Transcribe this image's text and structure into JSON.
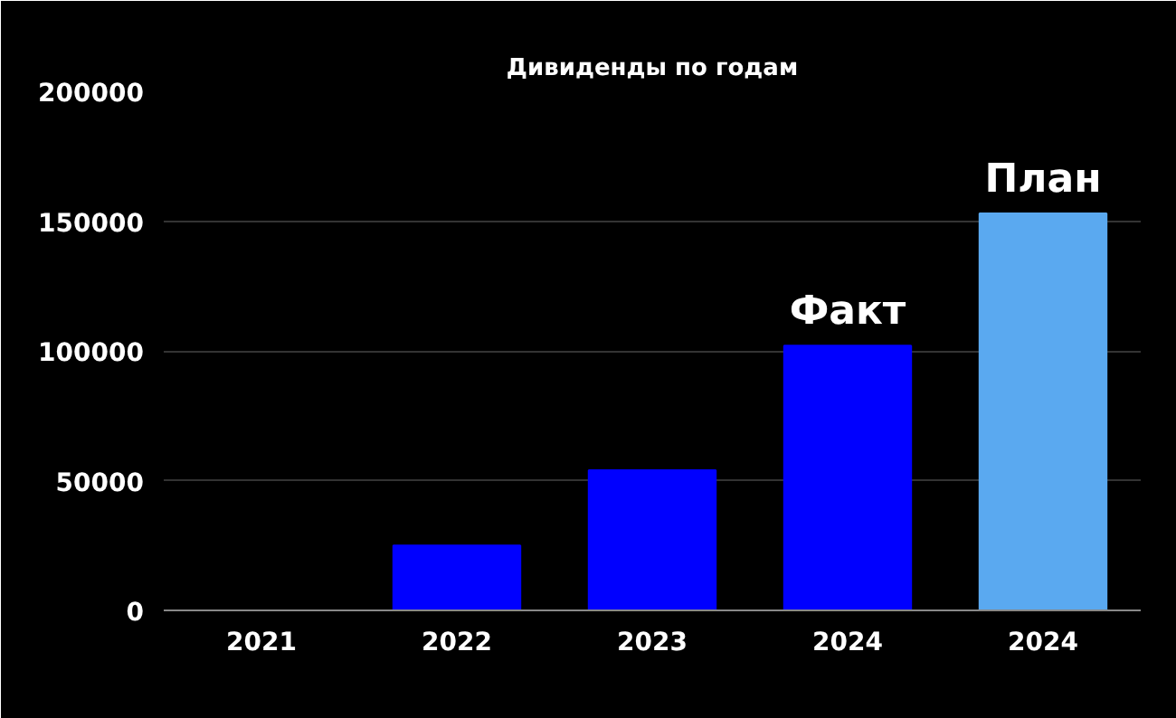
{
  "chart_data": {
    "type": "bar",
    "title": "Дивиденды по годам",
    "categories": [
      "2021",
      "2022",
      "2023",
      "2024",
      "2024"
    ],
    "values": [
      0,
      25000,
      54000,
      102000,
      153000
    ],
    "colors": [
      "#0000ff",
      "#0000ff",
      "#0000ff",
      "#0000ff",
      "#5aa9f0"
    ],
    "ylim": [
      0,
      200000
    ],
    "yticks": [
      0,
      50000,
      100000,
      150000,
      200000
    ],
    "grid": "y",
    "annotations": [
      {
        "text": "Факт",
        "y": 102000
      },
      {
        "text": "План",
        "y": 153000
      }
    ]
  }
}
